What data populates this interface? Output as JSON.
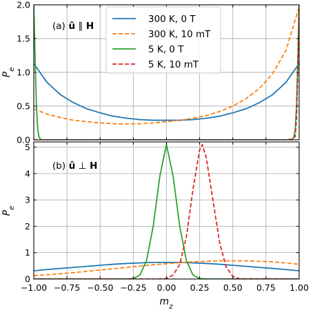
{
  "chart_data": [
    {
      "type": "line",
      "panel_label": "(a) û ∥ H",
      "ylabel": "P_e",
      "xlabel": "",
      "xlim": [
        -1.0,
        1.0
      ],
      "ylim": [
        0.0,
        2.0
      ],
      "xticks": [
        "−1.00",
        "−0.75",
        "−0.50",
        "−0.25",
        "0.00",
        "0.25",
        "0.50",
        "0.75",
        "1.00"
      ],
      "xtick_values": [
        -1.0,
        -0.75,
        -0.5,
        -0.25,
        0.0,
        0.25,
        0.5,
        0.75,
        1.0
      ],
      "yticks": [
        "0.0",
        "0.5",
        "1.0",
        "1.5",
        "2.0"
      ],
      "ytick_values": [
        0.0,
        0.5,
        1.0,
        1.5,
        2.0
      ],
      "grid": true,
      "legend_position": "top-center",
      "series": [
        {
          "name": "300 K, 0 T",
          "color": "#1f77b4",
          "dash": "solid",
          "x": [
            -1.0,
            -0.9,
            -0.8,
            -0.7,
            -0.6,
            -0.5,
            -0.4,
            -0.3,
            -0.2,
            -0.1,
            0.0,
            0.1,
            0.2,
            0.3,
            0.4,
            0.5,
            0.6,
            0.7,
            0.8,
            0.9,
            1.0
          ],
          "y": [
            1.13,
            0.85,
            0.67,
            0.55,
            0.46,
            0.4,
            0.35,
            0.32,
            0.3,
            0.29,
            0.29,
            0.29,
            0.3,
            0.32,
            0.35,
            0.4,
            0.46,
            0.55,
            0.67,
            0.85,
            1.13
          ]
        },
        {
          "name": "300 K, 10 mT",
          "color": "#ff7f0e",
          "dash": "dashed",
          "x": [
            -1.0,
            -0.9,
            -0.8,
            -0.7,
            -0.6,
            -0.5,
            -0.4,
            -0.3,
            -0.2,
            -0.1,
            0.0,
            0.1,
            0.2,
            0.3,
            0.4,
            0.5,
            0.6,
            0.7,
            0.8,
            0.9,
            1.0
          ],
          "y": [
            0.46,
            0.38,
            0.33,
            0.29,
            0.27,
            0.25,
            0.24,
            0.235,
            0.24,
            0.25,
            0.27,
            0.29,
            0.32,
            0.36,
            0.42,
            0.5,
            0.61,
            0.76,
            0.98,
            1.32,
            1.97
          ]
        },
        {
          "name": "5 K, 0 T",
          "color": "#2ca02c",
          "dash": "solid",
          "x": [
            -1.0,
            -0.99,
            -0.98,
            -0.97,
            -0.96,
            -0.95,
            -0.94,
            -0.9,
            0.0,
            0.9,
            0.94,
            0.95,
            0.96,
            0.97,
            0.98,
            0.99,
            1.0
          ],
          "y": [
            2.0,
            1.2,
            0.5,
            0.15,
            0.04,
            0.01,
            0.0,
            0.0,
            0.0,
            0.0,
            0.0,
            0.01,
            0.04,
            0.15,
            0.5,
            1.2,
            2.0
          ]
        },
        {
          "name": "5 K, 10 mT",
          "color": "#d62728",
          "dash": "dashed",
          "x": [
            -1.0,
            -0.9,
            0.0,
            0.9,
            0.95,
            0.97,
            0.98,
            0.99,
            1.0
          ],
          "y": [
            0.0,
            0.0,
            0.0,
            0.0,
            0.01,
            0.05,
            0.3,
            1.0,
            2.0
          ]
        }
      ]
    },
    {
      "type": "line",
      "panel_label": "(b) û ⊥ H",
      "ylabel": "P_e",
      "xlabel": "m_z",
      "xlim": [
        -1.0,
        1.0
      ],
      "ylim": [
        0.0,
        5.2
      ],
      "xticks": [
        "−1.00",
        "−0.75",
        "−0.50",
        "−0.25",
        "0.00",
        "0.25",
        "0.50",
        "0.75",
        "1.00"
      ],
      "xtick_values": [
        -1.0,
        -0.75,
        -0.5,
        -0.25,
        0.0,
        0.25,
        0.5,
        0.75,
        1.0
      ],
      "yticks": [
        "0",
        "1",
        "2",
        "3",
        "4",
        "5"
      ],
      "ytick_values": [
        0,
        1,
        2,
        3,
        4,
        5
      ],
      "grid": true,
      "series": [
        {
          "name": "300 K, 0 T",
          "color": "#1f77b4",
          "dash": "solid",
          "x": [
            -1.0,
            -0.9,
            -0.8,
            -0.7,
            -0.6,
            -0.5,
            -0.4,
            -0.3,
            -0.2,
            -0.1,
            0.0,
            0.1,
            0.2,
            0.3,
            0.4,
            0.5,
            0.6,
            0.7,
            0.8,
            0.9,
            1.0
          ],
          "y": [
            0.31,
            0.36,
            0.4,
            0.44,
            0.48,
            0.52,
            0.56,
            0.59,
            0.61,
            0.63,
            0.63,
            0.63,
            0.61,
            0.59,
            0.56,
            0.52,
            0.48,
            0.44,
            0.4,
            0.36,
            0.31
          ]
        },
        {
          "name": "300 K, 10 mT",
          "color": "#ff7f0e",
          "dash": "dashed",
          "x": [
            -1.0,
            -0.9,
            -0.8,
            -0.7,
            -0.6,
            -0.5,
            -0.4,
            -0.3,
            -0.2,
            -0.1,
            0.0,
            0.1,
            0.2,
            0.3,
            0.4,
            0.5,
            0.6,
            0.7,
            0.8,
            0.9,
            1.0
          ],
          "y": [
            0.13,
            0.16,
            0.2,
            0.24,
            0.29,
            0.34,
            0.39,
            0.44,
            0.49,
            0.54,
            0.58,
            0.62,
            0.65,
            0.67,
            0.69,
            0.69,
            0.69,
            0.67,
            0.65,
            0.61,
            0.56
          ]
        },
        {
          "name": "5 K, 0 T",
          "color": "#2ca02c",
          "dash": "solid",
          "x": [
            -1.0,
            -0.3,
            -0.25,
            -0.2,
            -0.15,
            -0.1,
            -0.05,
            0.0,
            0.05,
            0.1,
            0.15,
            0.2,
            0.25,
            0.3,
            1.0
          ],
          "y": [
            0.0,
            0.0,
            0.02,
            0.15,
            0.7,
            2.0,
            3.9,
            5.1,
            3.9,
            2.0,
            0.7,
            0.15,
            0.02,
            0.0,
            0.0
          ]
        },
        {
          "name": "5 K, 10 mT",
          "color": "#d62728",
          "dash": "dashed",
          "x": [
            -1.0,
            -0.05,
            0.0,
            0.05,
            0.1,
            0.15,
            0.2,
            0.25,
            0.27,
            0.3,
            0.35,
            0.4,
            0.45,
            0.5,
            0.55,
            1.0
          ],
          "y": [
            0.0,
            0.0,
            0.02,
            0.15,
            0.55,
            1.6,
            3.4,
            4.9,
            5.1,
            4.6,
            3.0,
            1.4,
            0.45,
            0.1,
            0.01,
            0.0
          ]
        }
      ]
    }
  ]
}
